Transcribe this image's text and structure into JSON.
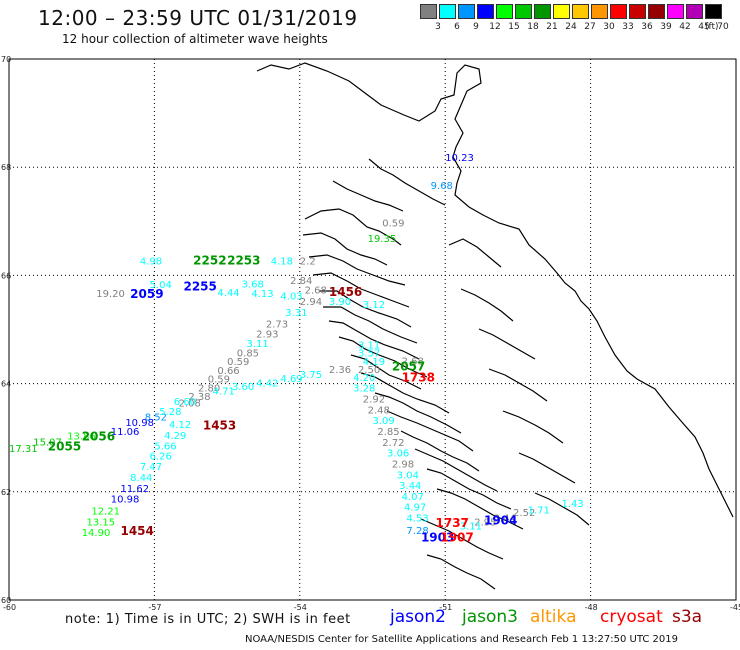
{
  "header": {
    "title": "12:00 – 23:59 UTC 01/31/2019",
    "subtitle": "12 hour collection of altimeter wave heights"
  },
  "legend": {
    "unit": "(ft)",
    "bins": [
      {
        "label": "3",
        "color": "#808080"
      },
      {
        "label": "6",
        "color": "#00ffff"
      },
      {
        "label": "9",
        "color": "#0096ff"
      },
      {
        "label": "12",
        "color": "#0000ff"
      },
      {
        "label": "15",
        "color": "#00ff00"
      },
      {
        "label": "18",
        "color": "#00c800"
      },
      {
        "label": "21",
        "color": "#009600"
      },
      {
        "label": "24",
        "color": "#ffff00"
      },
      {
        "label": "27",
        "color": "#ffc800"
      },
      {
        "label": "30",
        "color": "#ff9600"
      },
      {
        "label": "33",
        "color": "#ff0000"
      },
      {
        "label": "36",
        "color": "#c80000"
      },
      {
        "label": "39",
        "color": "#960000"
      },
      {
        "label": "42",
        "color": "#ff00ff"
      },
      {
        "label": "45",
        "color": "#b400b4"
      },
      {
        "label": "70",
        "color": "#000000"
      }
    ]
  },
  "map": {
    "lat_labels": [
      "70",
      "68",
      "66",
      "64",
      "62",
      "60"
    ],
    "lon_labels": [
      "-60",
      "-57",
      "-54",
      "-51",
      "-48",
      "-45"
    ],
    "lat_range": [
      60,
      70
    ],
    "lon_range": [
      -60,
      -45
    ],
    "wave_heights": [
      {
        "value": "10.23",
        "lat": 68.11,
        "lon": -51.0,
        "color": "#0000ff"
      },
      {
        "value": "9.68",
        "lat": 67.6,
        "lon": -51.3,
        "color": "#0096ff"
      },
      {
        "value": "0.59",
        "lat": 66.9,
        "lon": -52.3,
        "color": "#808080"
      },
      {
        "value": "19.35",
        "lat": 66.62,
        "lon": -52.6,
        "color": "#00c800"
      },
      {
        "value": "4.98",
        "lat": 66.2,
        "lon": -57.3,
        "color": "#00ffff"
      },
      {
        "value": "4.18",
        "lat": 66.2,
        "lon": -54.6,
        "color": "#00ffff"
      },
      {
        "value": "2.2",
        "lat": 66.2,
        "lon": -54.0,
        "color": "#808080"
      },
      {
        "value": "5.04",
        "lat": 65.77,
        "lon": -57.1,
        "color": "#00ffff"
      },
      {
        "value": "3.68",
        "lat": 65.78,
        "lon": -55.2,
        "color": "#00ffff"
      },
      {
        "value": "2.84",
        "lat": 65.84,
        "lon": -54.2,
        "color": "#808080"
      },
      {
        "value": "4.44",
        "lat": 65.62,
        "lon": -55.7,
        "color": "#00ffff"
      },
      {
        "value": "4.13",
        "lat": 65.6,
        "lon": -55.0,
        "color": "#00ffff"
      },
      {
        "value": "4.03",
        "lat": 65.55,
        "lon": -54.4,
        "color": "#00ffff"
      },
      {
        "value": "2.68",
        "lat": 65.67,
        "lon": -53.9,
        "color": "#808080"
      },
      {
        "value": "19.20",
        "lat": 65.6,
        "lon": -58.2,
        "color": "#808080"
      },
      {
        "value": "2.94",
        "lat": 65.45,
        "lon": -54.0,
        "color": "#808080"
      },
      {
        "value": "3.90",
        "lat": 65.45,
        "lon": -53.4,
        "color": "#00ffff"
      },
      {
        "value": "3.12",
        "lat": 65.4,
        "lon": -52.7,
        "color": "#00ffff"
      },
      {
        "value": "3.31",
        "lat": 65.25,
        "lon": -54.3,
        "color": "#00ffff"
      },
      {
        "value": "2.73",
        "lat": 65.04,
        "lon": -54.7,
        "color": "#808080"
      },
      {
        "value": "2.93",
        "lat": 64.85,
        "lon": -54.9,
        "color": "#808080"
      },
      {
        "value": "3.11",
        "lat": 64.68,
        "lon": -55.1,
        "color": "#00ffff"
      },
      {
        "value": "0.85",
        "lat": 64.5,
        "lon": -55.3,
        "color": "#808080"
      },
      {
        "value": "0.59",
        "lat": 64.34,
        "lon": -55.5,
        "color": "#808080"
      },
      {
        "value": "0.66",
        "lat": 64.18,
        "lon": -55.7,
        "color": "#808080"
      },
      {
        "value": "0.59",
        "lat": 64.02,
        "lon": -55.9,
        "color": "#808080"
      },
      {
        "value": "2.80",
        "lat": 63.85,
        "lon": -56.1,
        "color": "#808080"
      },
      {
        "value": "2.38",
        "lat": 63.7,
        "lon": -56.3,
        "color": "#808080"
      },
      {
        "value": "2.08",
        "lat": 63.58,
        "lon": -56.5,
        "color": "#808080"
      },
      {
        "value": "3.11",
        "lat": 64.65,
        "lon": -52.8,
        "color": "#00ffff"
      },
      {
        "value": "3.57",
        "lat": 64.5,
        "lon": -52.8,
        "color": "#00ffff"
      },
      {
        "value": "4.19",
        "lat": 64.34,
        "lon": -52.7,
        "color": "#00ffff"
      },
      {
        "value": "2.68",
        "lat": 64.35,
        "lon": -51.9,
        "color": "#808080"
      },
      {
        "value": "2.36",
        "lat": 64.2,
        "lon": -53.4,
        "color": "#808080"
      },
      {
        "value": "2.50",
        "lat": 64.2,
        "lon": -52.8,
        "color": "#808080"
      },
      {
        "value": "3.75",
        "lat": 64.1,
        "lon": -54.0,
        "color": "#00ffff"
      },
      {
        "value": "4.69",
        "lat": 64.03,
        "lon": -54.4,
        "color": "#00ffff"
      },
      {
        "value": "4.42",
        "lat": 63.95,
        "lon": -54.9,
        "color": "#00ffff"
      },
      {
        "value": "3.60",
        "lat": 63.88,
        "lon": -55.4,
        "color": "#00ffff"
      },
      {
        "value": "4.71",
        "lat": 63.8,
        "lon": -55.8,
        "color": "#00ffff"
      },
      {
        "value": "6.60",
        "lat": 63.6,
        "lon": -56.6,
        "color": "#00ffff"
      },
      {
        "value": "4.20",
        "lat": 64.05,
        "lon": -52.9,
        "color": "#00ffff"
      },
      {
        "value": "3.28",
        "lat": 63.85,
        "lon": -52.9,
        "color": "#00ffff"
      },
      {
        "value": "2.92",
        "lat": 63.65,
        "lon": -52.7,
        "color": "#808080"
      },
      {
        "value": "2.48",
        "lat": 63.45,
        "lon": -52.6,
        "color": "#808080"
      },
      {
        "value": "3.09",
        "lat": 63.25,
        "lon": -52.5,
        "color": "#00ffff"
      },
      {
        "value": "2.85",
        "lat": 63.05,
        "lon": -52.4,
        "color": "#808080"
      },
      {
        "value": "2.72",
        "lat": 62.85,
        "lon": -52.3,
        "color": "#808080"
      },
      {
        "value": "3.06",
        "lat": 62.65,
        "lon": -52.2,
        "color": "#00ffff"
      },
      {
        "value": "2.98",
        "lat": 62.45,
        "lon": -52.1,
        "color": "#808080"
      },
      {
        "value": "3.04",
        "lat": 62.25,
        "lon": -52.0,
        "color": "#00ffff"
      },
      {
        "value": "3.44",
        "lat": 62.05,
        "lon": -51.95,
        "color": "#00ffff"
      },
      {
        "value": "4.07",
        "lat": 61.85,
        "lon": -51.9,
        "color": "#00ffff"
      },
      {
        "value": "4.97",
        "lat": 61.65,
        "lon": -51.85,
        "color": "#00ffff"
      },
      {
        "value": "4.53",
        "lat": 61.45,
        "lon": -51.8,
        "color": "#00ffff"
      },
      {
        "value": "7.28",
        "lat": 61.22,
        "lon": -51.8,
        "color": "#0096ff"
      },
      {
        "value": "8.52",
        "lat": 63.32,
        "lon": -57.2,
        "color": "#0096ff"
      },
      {
        "value": "5.28",
        "lat": 63.42,
        "lon": -56.9,
        "color": "#00ffff"
      },
      {
        "value": "10.98",
        "lat": 63.22,
        "lon": -57.6,
        "color": "#0000ff"
      },
      {
        "value": "11.06",
        "lat": 63.05,
        "lon": -57.9,
        "color": "#0000ff"
      },
      {
        "value": "4.12",
        "lat": 63.18,
        "lon": -56.7,
        "color": "#00ffff"
      },
      {
        "value": "4.29",
        "lat": 62.98,
        "lon": -56.8,
        "color": "#00ffff"
      },
      {
        "value": "5.66",
        "lat": 62.78,
        "lon": -57.0,
        "color": "#00ffff"
      },
      {
        "value": "6.26",
        "lat": 62.6,
        "lon": -57.1,
        "color": "#00ffff"
      },
      {
        "value": "7.47",
        "lat": 62.4,
        "lon": -57.3,
        "color": "#00ffff"
      },
      {
        "value": "8.44",
        "lat": 62.2,
        "lon": -57.5,
        "color": "#00ffff"
      },
      {
        "value": "11.62",
        "lat": 62.0,
        "lon": -57.7,
        "color": "#0000ff"
      },
      {
        "value": "10.98",
        "lat": 61.8,
        "lon": -57.9,
        "color": "#0000ff"
      },
      {
        "value": "12.21",
        "lat": 61.58,
        "lon": -58.3,
        "color": "#00ff00"
      },
      {
        "value": "13.15",
        "lat": 61.38,
        "lon": -58.4,
        "color": "#00ff00"
      },
      {
        "value": "14.90",
        "lat": 61.18,
        "lon": -58.5,
        "color": "#00ff00"
      },
      {
        "value": "13.86",
        "lat": 62.97,
        "lon": -58.8,
        "color": "#00ff00"
      },
      {
        "value": "15.07",
        "lat": 62.86,
        "lon": -59.5,
        "color": "#00c800"
      },
      {
        "value": "17.31",
        "lat": 62.74,
        "lon": -60.0,
        "color": "#00c800"
      },
      {
        "value": "2.52",
        "lat": 61.55,
        "lon": -49.6,
        "color": "#808080"
      },
      {
        "value": "1.71",
        "lat": 61.6,
        "lon": -49.3,
        "color": "#00ffff"
      },
      {
        "value": "1.43",
        "lat": 61.72,
        "lon": -48.6,
        "color": "#00ffff"
      },
      {
        "value": "3.44",
        "lat": 61.45,
        "lon": -50.0,
        "color": "#808080"
      },
      {
        "value": "2.95",
        "lat": 61.38,
        "lon": -50.4,
        "color": "#808080"
      },
      {
        "value": "3.11",
        "lat": 61.3,
        "lon": -50.7,
        "color": "#00ffff"
      }
    ],
    "pass_times": [
      {
        "value": "2252",
        "lat": 66.2,
        "lon": -56.2,
        "color": "#009600"
      },
      {
        "value": "2253",
        "lat": 66.2,
        "lon": -55.5,
        "color": "#009600"
      },
      {
        "value": "2255",
        "lat": 65.72,
        "lon": -56.4,
        "color": "#0000ff"
      },
      {
        "value": "2059",
        "lat": 65.58,
        "lon": -57.5,
        "color": "#0000ff"
      },
      {
        "value": "1456",
        "lat": 65.62,
        "lon": -53.4,
        "color": "#960000"
      },
      {
        "value": "2057",
        "lat": 64.24,
        "lon": -52.1,
        "color": "#009600"
      },
      {
        "value": "1738",
        "lat": 64.04,
        "lon": -51.9,
        "color": "#ff0000"
      },
      {
        "value": "1453",
        "lat": 63.15,
        "lon": -56.0,
        "color": "#960000"
      },
      {
        "value": "2056",
        "lat": 62.95,
        "lon": -58.5,
        "color": "#009600"
      },
      {
        "value": "2055",
        "lat": 62.76,
        "lon": -59.2,
        "color": "#009600"
      },
      {
        "value": "1454",
        "lat": 61.2,
        "lon": -57.7,
        "color": "#960000"
      },
      {
        "value": "1904",
        "lat": 61.4,
        "lon": -50.2,
        "color": "#0000ff"
      },
      {
        "value": "1737",
        "lat": 61.35,
        "lon": -51.2,
        "color": "#ff0000"
      },
      {
        "value": "1903",
        "lat": 61.08,
        "lon": -51.5,
        "color": "#0000ff"
      },
      {
        "value": "1907",
        "lat": 61.08,
        "lon": -51.1,
        "color": "#ff0000"
      }
    ]
  },
  "footer": {
    "note": "note: 1) Time is in UTC; 2) SWH is in feet",
    "satellites": [
      {
        "name": "jason2",
        "color": "#0000ff"
      },
      {
        "name": "jason3",
        "color": "#009600"
      },
      {
        "name": "altika",
        "color": "#ff9600"
      },
      {
        "name": "cryosat",
        "color": "#ff0000"
      },
      {
        "name": "s3a",
        "color": "#960000"
      }
    ],
    "credit": "NOAA/NESDIS Center for Satellite Applications and Research    Feb  1 13:27:50 UTC 2019"
  }
}
